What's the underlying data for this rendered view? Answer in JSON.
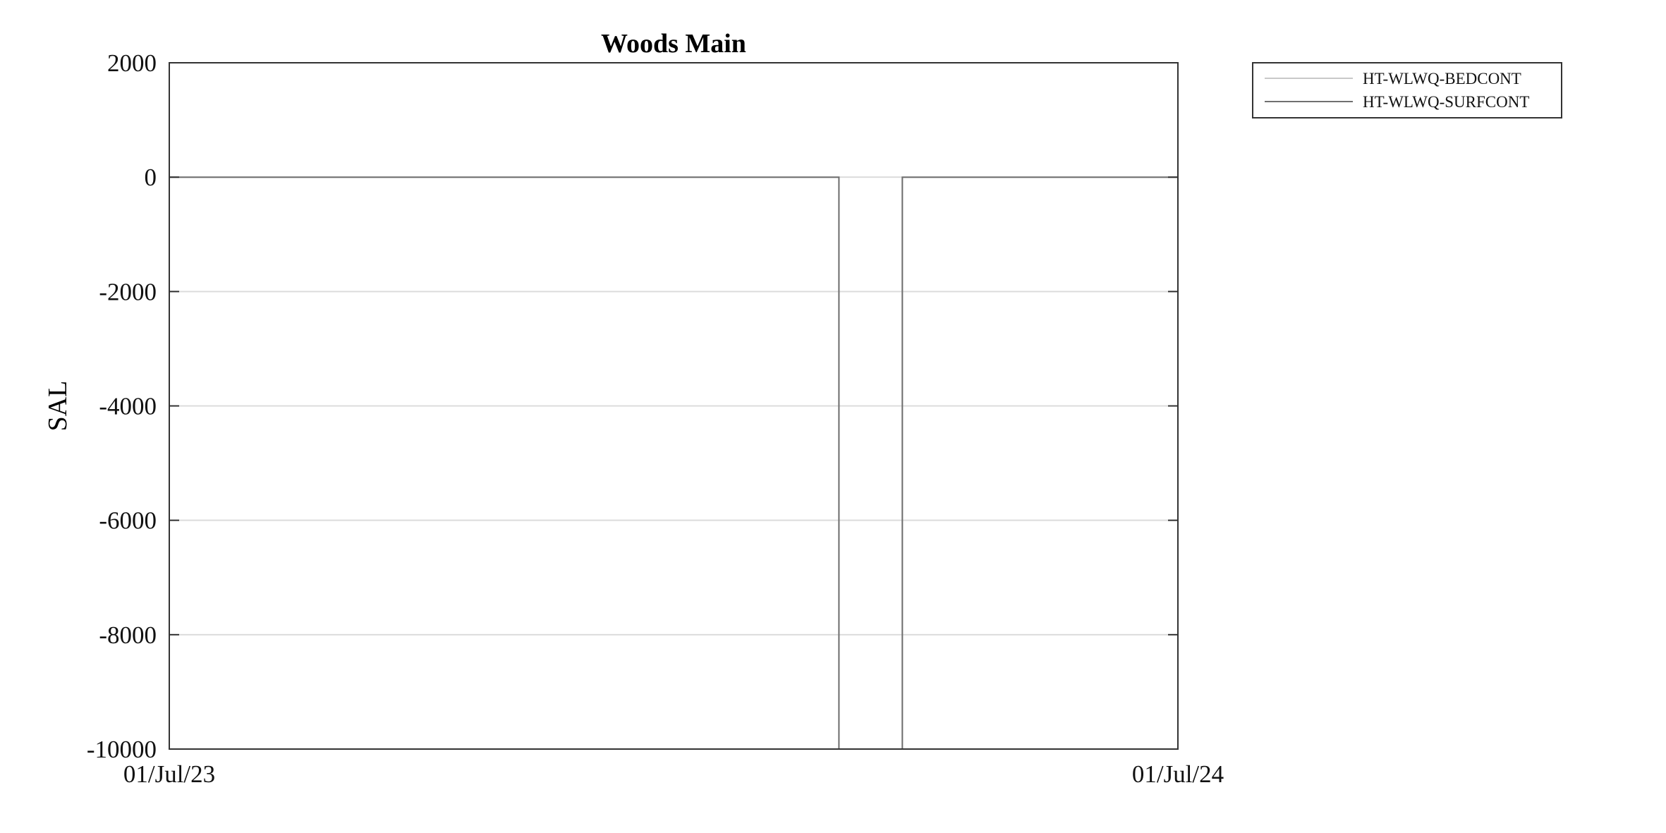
{
  "chart_data": {
    "type": "line",
    "title": "Woods Main",
    "xlabel": "",
    "ylabel": "SAL",
    "x_ticks": [
      "01/Jul/23",
      "01/Jul/24"
    ],
    "xlim": [
      "2023-07-01",
      "2024-07-01"
    ],
    "ylim": [
      -10000,
      2000
    ],
    "y_ticks": [
      2000,
      0,
      -2000,
      -4000,
      -6000,
      -8000,
      -10000
    ],
    "grid": "horizontal",
    "legend_position": "outside-top-right",
    "series": [
      {
        "name": "HT-WLWQ-BEDCONT",
        "color": "#c8c8c8",
        "x": [
          "2023-07-01",
          "2024-02-29",
          "2024-02-29",
          "2024-03-23",
          "2024-03-23",
          "2024-07-01"
        ],
        "y": [
          0,
          0,
          -10000,
          -10000,
          0,
          0
        ]
      },
      {
        "name": "HT-WLWQ-SURFCONT",
        "color": "#707070",
        "x": [
          "2023-07-01",
          "2024-02-29",
          "2024-02-29",
          "2024-03-23",
          "2024-03-23",
          "2024-07-01"
        ],
        "y": [
          0,
          0,
          -10000,
          -10000,
          0,
          0
        ]
      }
    ]
  }
}
